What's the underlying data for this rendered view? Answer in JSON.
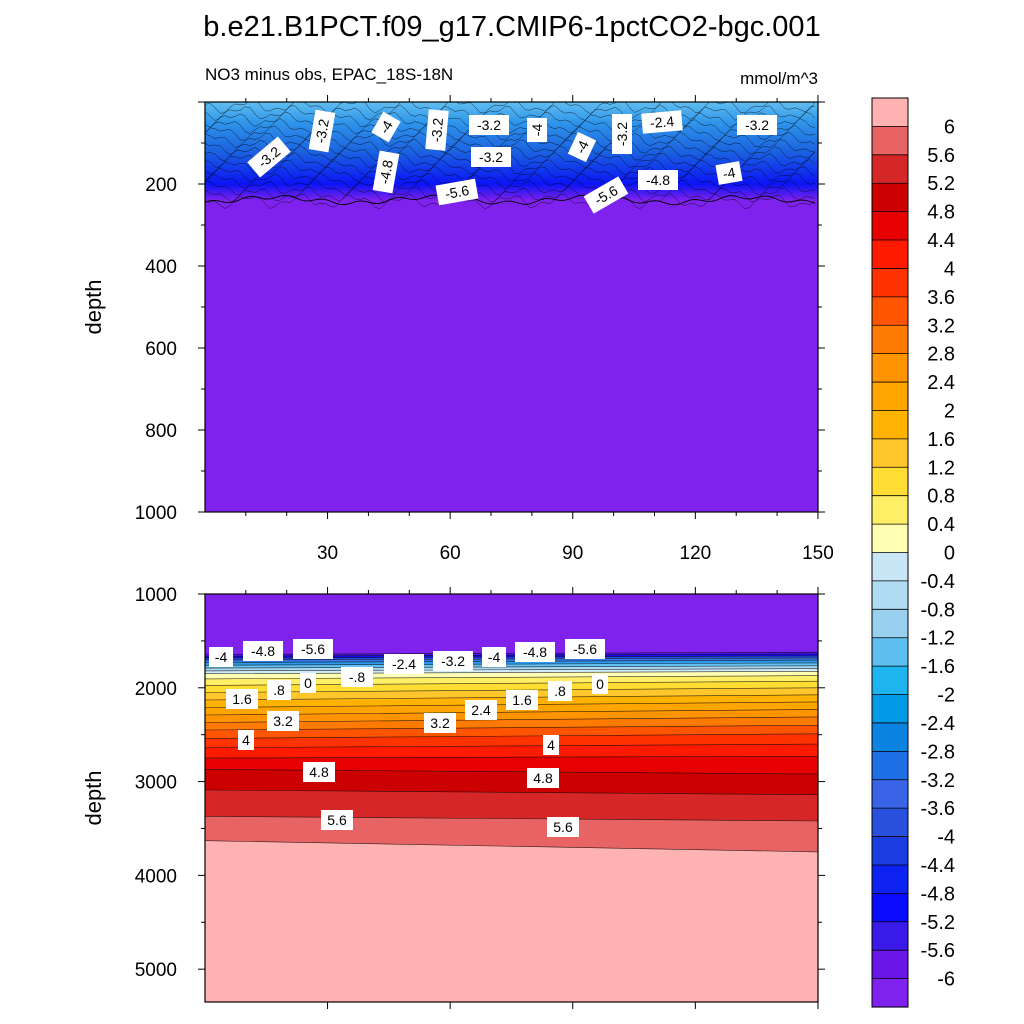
{
  "title": "b.e21.B1PCT.f09_g17.CMIP6-1pctCO2-bgc.001",
  "chart_data": {
    "type": "contour",
    "units": "mmol/m^3",
    "colorbar": {
      "labels": [
        "6",
        "5.6",
        "5.2",
        "4.8",
        "4.4",
        "4",
        "3.6",
        "3.2",
        "2.8",
        "2.4",
        "2",
        "1.6",
        "1.2",
        "0.8",
        "0.4",
        "0",
        "-0.4",
        "-0.8",
        "-1.2",
        "-1.6",
        "-2",
        "-2.4",
        "-2.8",
        "-3.2",
        "-3.6",
        "-4",
        "-4.4",
        "-4.8",
        "-5.2",
        "-5.6",
        "-6"
      ],
      "colors": [
        "#ffb2b2",
        "#e86363",
        "#d62728",
        "#cc0000",
        "#e60000",
        "#ff1a00",
        "#ff3300",
        "#ff5500",
        "#ff7a00",
        "#ff9400",
        "#ffa500",
        "#ffb300",
        "#ffc72c",
        "#ffdd33",
        "#ffef66",
        "#ffffb4",
        "#c9e6f7",
        "#b0dcf4",
        "#99d0f0",
        "#5cbfef",
        "#1eb4ee",
        "#009ae6",
        "#0a84e0",
        "#1e6ee6",
        "#3a64e8",
        "#2850dc",
        "#1a3ce0",
        "#0d22f0",
        "#0a0aff",
        "#3a1ae6",
        "#6a16e6",
        "#7f22ee"
      ]
    },
    "panels": [
      {
        "name": "upper",
        "subtitle_left": "NO3 minus obs, EPAC_18S-18N",
        "subtitle_right": "mmol/m^3",
        "ylabel": "depth",
        "ylim": [
          0,
          1000
        ],
        "yticks": [
          "200",
          "400",
          "600",
          "800",
          "1000"
        ],
        "xticks": [
          "30",
          "60",
          "90",
          "120",
          "150"
        ],
        "contour_labels": [
          "-3.2",
          "-3.2",
          "-4",
          "-4.8",
          "-3.2",
          "-3.2",
          "-4",
          "-5.6",
          "-3.2",
          "-4",
          "-3.2",
          "-5.6",
          "-2.4",
          "-4.8",
          "-4",
          "-3.2"
        ]
      },
      {
        "name": "lower",
        "ylabel": "depth",
        "ylim": [
          1000,
          5350
        ],
        "yticks": [
          "1000",
          "2000",
          "3000",
          "4000",
          "5000"
        ],
        "contour_labels": [
          "-4",
          "-4.8",
          "-5.6",
          "-2.4",
          "-3.2",
          "-4",
          "-4.8",
          "-5.6",
          "0",
          "-.8",
          "1.6",
          ".8",
          "0",
          ".8",
          "1.6",
          "2.4",
          "3.2",
          "3.2",
          "4",
          "4",
          "4.8",
          "4.8",
          "5.6",
          "5.6"
        ]
      }
    ]
  }
}
